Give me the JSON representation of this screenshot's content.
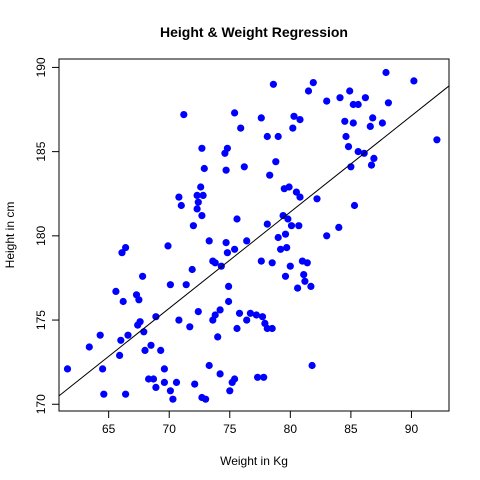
{
  "chart_data": {
    "type": "scatter",
    "title": "Height & Weight Regression",
    "xlabel": "Weight in Kg",
    "ylabel": "Height in cm",
    "xlim": [
      60.9,
      93.1
    ],
    "ylim": [
      169.6,
      190.5
    ],
    "x_ticks": [
      65,
      70,
      75,
      80,
      85,
      90
    ],
    "y_ticks": [
      170,
      175,
      180,
      185,
      190
    ],
    "grid": false,
    "legend": "none",
    "point_color": "#0000ff",
    "line_color": "#000000",
    "regression_line": {
      "x": [
        60.9,
        93.1
      ],
      "y": [
        170.5,
        188.9
      ]
    },
    "points": [
      {
        "x": 61.6,
        "y": 172.1
      },
      {
        "x": 63.4,
        "y": 173.4
      },
      {
        "x": 64.3,
        "y": 174.1
      },
      {
        "x": 64.5,
        "y": 172.1
      },
      {
        "x": 64.6,
        "y": 170.6
      },
      {
        "x": 65.6,
        "y": 176.7
      },
      {
        "x": 65.9,
        "y": 172.9
      },
      {
        "x": 66.0,
        "y": 173.8
      },
      {
        "x": 66.1,
        "y": 179.0
      },
      {
        "x": 66.4,
        "y": 179.3
      },
      {
        "x": 66.2,
        "y": 176.1
      },
      {
        "x": 66.6,
        "y": 174.1
      },
      {
        "x": 66.4,
        "y": 170.6
      },
      {
        "x": 67.3,
        "y": 176.5
      },
      {
        "x": 67.5,
        "y": 176.2
      },
      {
        "x": 67.4,
        "y": 174.7
      },
      {
        "x": 67.6,
        "y": 174.9
      },
      {
        "x": 67.8,
        "y": 177.6
      },
      {
        "x": 67.9,
        "y": 174.3
      },
      {
        "x": 68.0,
        "y": 173.2
      },
      {
        "x": 68.3,
        "y": 171.5
      },
      {
        "x": 68.5,
        "y": 173.5
      },
      {
        "x": 68.7,
        "y": 171.5
      },
      {
        "x": 68.9,
        "y": 175.2
      },
      {
        "x": 68.9,
        "y": 171.0
      },
      {
        "x": 69.3,
        "y": 173.2
      },
      {
        "x": 69.6,
        "y": 172.1
      },
      {
        "x": 69.6,
        "y": 171.3
      },
      {
        "x": 69.9,
        "y": 179.4
      },
      {
        "x": 70.1,
        "y": 177.1
      },
      {
        "x": 70.1,
        "y": 170.8
      },
      {
        "x": 70.3,
        "y": 170.3
      },
      {
        "x": 70.6,
        "y": 171.3
      },
      {
        "x": 70.8,
        "y": 182.3
      },
      {
        "x": 71.0,
        "y": 181.8
      },
      {
        "x": 70.8,
        "y": 175.0
      },
      {
        "x": 71.2,
        "y": 187.2
      },
      {
        "x": 71.4,
        "y": 177.1
      },
      {
        "x": 71.7,
        "y": 174.6
      },
      {
        "x": 71.9,
        "y": 178.0
      },
      {
        "x": 72.0,
        "y": 180.6
      },
      {
        "x": 72.1,
        "y": 171.2
      },
      {
        "x": 72.3,
        "y": 181.6
      },
      {
        "x": 72.4,
        "y": 182.0
      },
      {
        "x": 72.3,
        "y": 182.4
      },
      {
        "x": 72.4,
        "y": 175.5
      },
      {
        "x": 72.6,
        "y": 182.9
      },
      {
        "x": 72.7,
        "y": 181.2
      },
      {
        "x": 72.7,
        "y": 185.2
      },
      {
        "x": 72.9,
        "y": 184.0
      },
      {
        "x": 72.8,
        "y": 182.4
      },
      {
        "x": 72.7,
        "y": 170.4
      },
      {
        "x": 73.0,
        "y": 170.3
      },
      {
        "x": 73.3,
        "y": 179.7
      },
      {
        "x": 73.3,
        "y": 172.3
      },
      {
        "x": 73.6,
        "y": 178.5
      },
      {
        "x": 73.6,
        "y": 175.0
      },
      {
        "x": 73.8,
        "y": 178.4
      },
      {
        "x": 73.8,
        "y": 175.3
      },
      {
        "x": 74.0,
        "y": 174.0
      },
      {
        "x": 74.2,
        "y": 171.8
      },
      {
        "x": 74.3,
        "y": 178.2
      },
      {
        "x": 74.2,
        "y": 175.6
      },
      {
        "x": 74.6,
        "y": 184.9
      },
      {
        "x": 74.8,
        "y": 185.2
      },
      {
        "x": 74.7,
        "y": 183.9
      },
      {
        "x": 74.7,
        "y": 179.6
      },
      {
        "x": 74.8,
        "y": 179.0
      },
      {
        "x": 74.9,
        "y": 177.0
      },
      {
        "x": 74.9,
        "y": 176.1
      },
      {
        "x": 75.0,
        "y": 170.8
      },
      {
        "x": 75.2,
        "y": 171.3
      },
      {
        "x": 75.4,
        "y": 171.5
      },
      {
        "x": 75.4,
        "y": 179.2
      },
      {
        "x": 75.6,
        "y": 181.0
      },
      {
        "x": 75.4,
        "y": 187.3
      },
      {
        "x": 75.6,
        "y": 174.5
      },
      {
        "x": 75.8,
        "y": 175.4
      },
      {
        "x": 75.9,
        "y": 186.4
      },
      {
        "x": 76.2,
        "y": 184.1
      },
      {
        "x": 76.4,
        "y": 175.0
      },
      {
        "x": 76.4,
        "y": 179.7
      },
      {
        "x": 76.7,
        "y": 175.4
      },
      {
        "x": 77.2,
        "y": 175.3
      },
      {
        "x": 77.3,
        "y": 171.6
      },
      {
        "x": 77.6,
        "y": 187.0
      },
      {
        "x": 77.6,
        "y": 178.5
      },
      {
        "x": 77.7,
        "y": 175.2
      },
      {
        "x": 77.8,
        "y": 171.6
      },
      {
        "x": 77.9,
        "y": 174.8
      },
      {
        "x": 78.1,
        "y": 185.9
      },
      {
        "x": 78.1,
        "y": 180.7
      },
      {
        "x": 78.1,
        "y": 174.5
      },
      {
        "x": 78.3,
        "y": 183.6
      },
      {
        "x": 78.5,
        "y": 178.4
      },
      {
        "x": 78.5,
        "y": 174.5
      },
      {
        "x": 78.6,
        "y": 189.0
      },
      {
        "x": 78.8,
        "y": 184.4
      },
      {
        "x": 79.0,
        "y": 179.9
      },
      {
        "x": 79.0,
        "y": 185.9
      },
      {
        "x": 79.2,
        "y": 179.2
      },
      {
        "x": 79.4,
        "y": 181.2
      },
      {
        "x": 79.5,
        "y": 182.8
      },
      {
        "x": 79.6,
        "y": 180.1
      },
      {
        "x": 79.6,
        "y": 177.6
      },
      {
        "x": 79.7,
        "y": 179.3
      },
      {
        "x": 79.9,
        "y": 182.9
      },
      {
        "x": 79.8,
        "y": 181.0
      },
      {
        "x": 80.0,
        "y": 178.2
      },
      {
        "x": 80.1,
        "y": 180.6
      },
      {
        "x": 80.2,
        "y": 186.4
      },
      {
        "x": 80.3,
        "y": 187.1
      },
      {
        "x": 80.5,
        "y": 182.6
      },
      {
        "x": 80.6,
        "y": 176.9
      },
      {
        "x": 80.7,
        "y": 180.6
      },
      {
        "x": 80.8,
        "y": 186.9
      },
      {
        "x": 80.8,
        "y": 182.3
      },
      {
        "x": 81.0,
        "y": 178.5
      },
      {
        "x": 81.1,
        "y": 177.7
      },
      {
        "x": 81.2,
        "y": 177.3
      },
      {
        "x": 81.4,
        "y": 178.4
      },
      {
        "x": 81.5,
        "y": 188.6
      },
      {
        "x": 81.7,
        "y": 177.0
      },
      {
        "x": 81.8,
        "y": 172.3
      },
      {
        "x": 81.9,
        "y": 189.1
      },
      {
        "x": 82.2,
        "y": 182.2
      },
      {
        "x": 83.0,
        "y": 180.0
      },
      {
        "x": 83.0,
        "y": 188.0
      },
      {
        "x": 84.0,
        "y": 180.5
      },
      {
        "x": 84.1,
        "y": 188.2
      },
      {
        "x": 84.5,
        "y": 186.8
      },
      {
        "x": 84.6,
        "y": 185.9
      },
      {
        "x": 84.8,
        "y": 185.3
      },
      {
        "x": 84.9,
        "y": 188.6
      },
      {
        "x": 85.0,
        "y": 184.1
      },
      {
        "x": 85.2,
        "y": 187.8
      },
      {
        "x": 85.2,
        "y": 186.7
      },
      {
        "x": 85.3,
        "y": 181.8
      },
      {
        "x": 85.6,
        "y": 187.8
      },
      {
        "x": 85.6,
        "y": 185.0
      },
      {
        "x": 86.1,
        "y": 184.9
      },
      {
        "x": 86.2,
        "y": 188.2
      },
      {
        "x": 86.6,
        "y": 186.5
      },
      {
        "x": 86.7,
        "y": 184.2
      },
      {
        "x": 86.8,
        "y": 187.0
      },
      {
        "x": 86.9,
        "y": 184.6
      },
      {
        "x": 87.9,
        "y": 189.7
      },
      {
        "x": 87.6,
        "y": 186.7
      },
      {
        "x": 88.1,
        "y": 187.9
      },
      {
        "x": 90.2,
        "y": 189.2
      },
      {
        "x": 92.1,
        "y": 185.7
      }
    ]
  }
}
